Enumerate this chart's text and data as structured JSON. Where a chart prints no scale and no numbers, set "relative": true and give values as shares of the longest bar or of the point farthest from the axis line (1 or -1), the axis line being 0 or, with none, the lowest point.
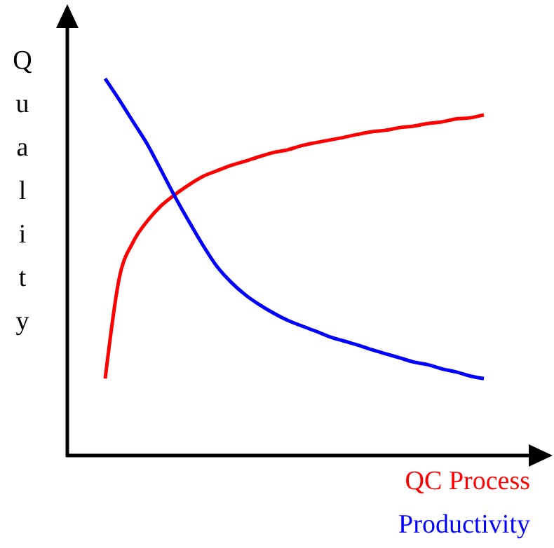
{
  "chart_data": {
    "type": "line",
    "relative": true,
    "ylabel": "Quality",
    "legend": "bottom right",
    "categories": [
      null,
      null,
      null,
      null,
      null,
      null,
      null,
      null,
      null,
      null,
      null,
      null,
      null,
      null,
      null,
      null,
      null,
      null,
      null,
      null,
      null,
      null,
      null,
      null,
      null,
      null,
      null,
      null
    ],
    "series": [
      {
        "name": "QC Process",
        "color": "#ff0000",
        "values": [
          0.204,
          0.47,
          0.567,
          0.622,
          0.663,
          0.693,
          0.719,
          0.741,
          0.756,
          0.77,
          0.781,
          0.793,
          0.804,
          0.811,
          0.822,
          0.83,
          0.837,
          0.844,
          0.852,
          0.859,
          0.863,
          0.87,
          0.874,
          0.881,
          0.885,
          0.893,
          0.896,
          0.904
        ]
      },
      {
        "name": "Productivity",
        "color": "#0000ff",
        "values": [
          1,
          0.944,
          0.885,
          0.826,
          0.756,
          0.685,
          0.619,
          0.556,
          0.5,
          0.459,
          0.426,
          0.4,
          0.378,
          0.359,
          0.344,
          0.33,
          0.315,
          0.304,
          0.293,
          0.281,
          0.27,
          0.259,
          0.248,
          0.241,
          0.23,
          0.222,
          0.211,
          0.204
        ]
      }
    ]
  }
}
